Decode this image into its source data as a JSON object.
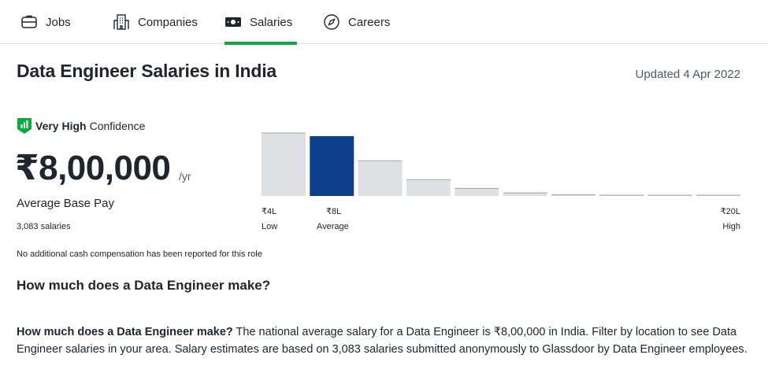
{
  "nav": {
    "tabs": [
      {
        "label": "Jobs",
        "icon": "jobs-icon"
      },
      {
        "label": "Companies",
        "icon": "building-icon"
      },
      {
        "label": "Salaries",
        "icon": "money-icon"
      },
      {
        "label": "Careers",
        "icon": "compass-icon"
      }
    ],
    "active_tab": "Salaries",
    "accent": "#0caa41"
  },
  "header": {
    "title": "Data Engineer Salaries in India",
    "updated": "Updated 4 Apr 2022"
  },
  "summary": {
    "confidence_level": "Very High",
    "confidence_word": "Confidence",
    "amount": "₹8,00,000",
    "per": "/yr",
    "label": "Average Base Pay",
    "count": "3,083 salaries",
    "note": "No additional cash compensation has been reported for this role"
  },
  "chart_data": {
    "type": "bar",
    "values": [
      100,
      95,
      56,
      26,
      12,
      5,
      2,
      1,
      1,
      1
    ],
    "highlight_index": 1,
    "colors": {
      "bar": "#dee0e3",
      "highlight": "#0d3e8e",
      "stroke": "#9ea2a8"
    },
    "tick_labels": {
      "low_value": "₹4L",
      "low_word": "Low",
      "avg_value": "₹8L",
      "avg_word": "Average",
      "high_value": "₹20L",
      "high_word": "High"
    }
  },
  "faq": {
    "heading": "How much does a Data Engineer make?",
    "lead": "How much does a Data Engineer make?",
    "body": " The national average salary for a Data Engineer is ₹8,00,000 in India. Filter by location to see Data Engineer salaries in your area. Salary estimates are based on 3,083 salaries submitted anonymously to Glassdoor by Data Engineer employees."
  }
}
